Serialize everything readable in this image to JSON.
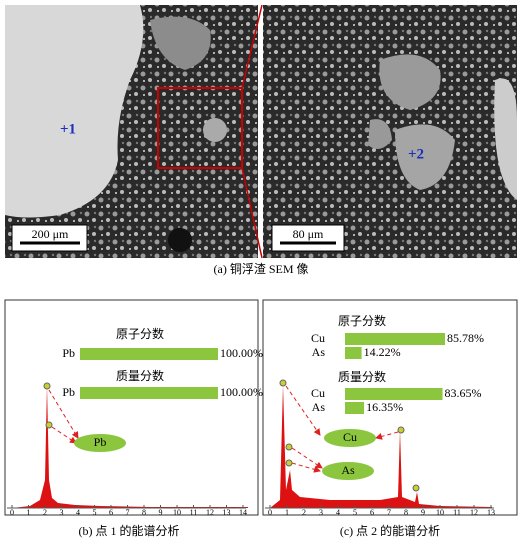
{
  "sem": {
    "caption": "(a) 铜浮渣 SEM 像",
    "left": {
      "point": "+1",
      "scale": "200 μm"
    },
    "right": {
      "point": "+2",
      "scale": "80 μm"
    }
  },
  "spectra": [
    {
      "caption": "(b) 点 1 的能谱分析",
      "atomic_title": "原子分数",
      "mass_title": "质量分数",
      "atomic": [
        {
          "element": "Pb",
          "value": 100,
          "value_label": "100.00%"
        }
      ],
      "mass": [
        {
          "element": "Pb",
          "value": 100,
          "value_label": "100.00%"
        }
      ],
      "xticks": [
        0,
        1,
        2,
        3,
        4,
        5,
        6,
        7,
        8,
        9,
        10,
        11,
        12,
        13,
        14
      ],
      "peak_labels": [
        "Pb"
      ]
    },
    {
      "caption": "(c) 点 2 的能谱分析",
      "atomic_title": "原子分数",
      "mass_title": "质量分数",
      "atomic": [
        {
          "element": "Cu",
          "value": 85.78,
          "value_label": "85.78%"
        },
        {
          "element": "As",
          "value": 14.22,
          "value_label": "14.22%"
        }
      ],
      "mass": [
        {
          "element": "Cu",
          "value": 83.65,
          "value_label": "83.65%"
        },
        {
          "element": "As",
          "value": 16.35,
          "value_label": "16.35%"
        }
      ],
      "xticks": [
        0,
        1,
        2,
        3,
        4,
        5,
        6,
        7,
        8,
        9,
        10,
        11,
        12,
        13
      ],
      "peak_labels": [
        "Cu",
        "As"
      ]
    }
  ]
}
